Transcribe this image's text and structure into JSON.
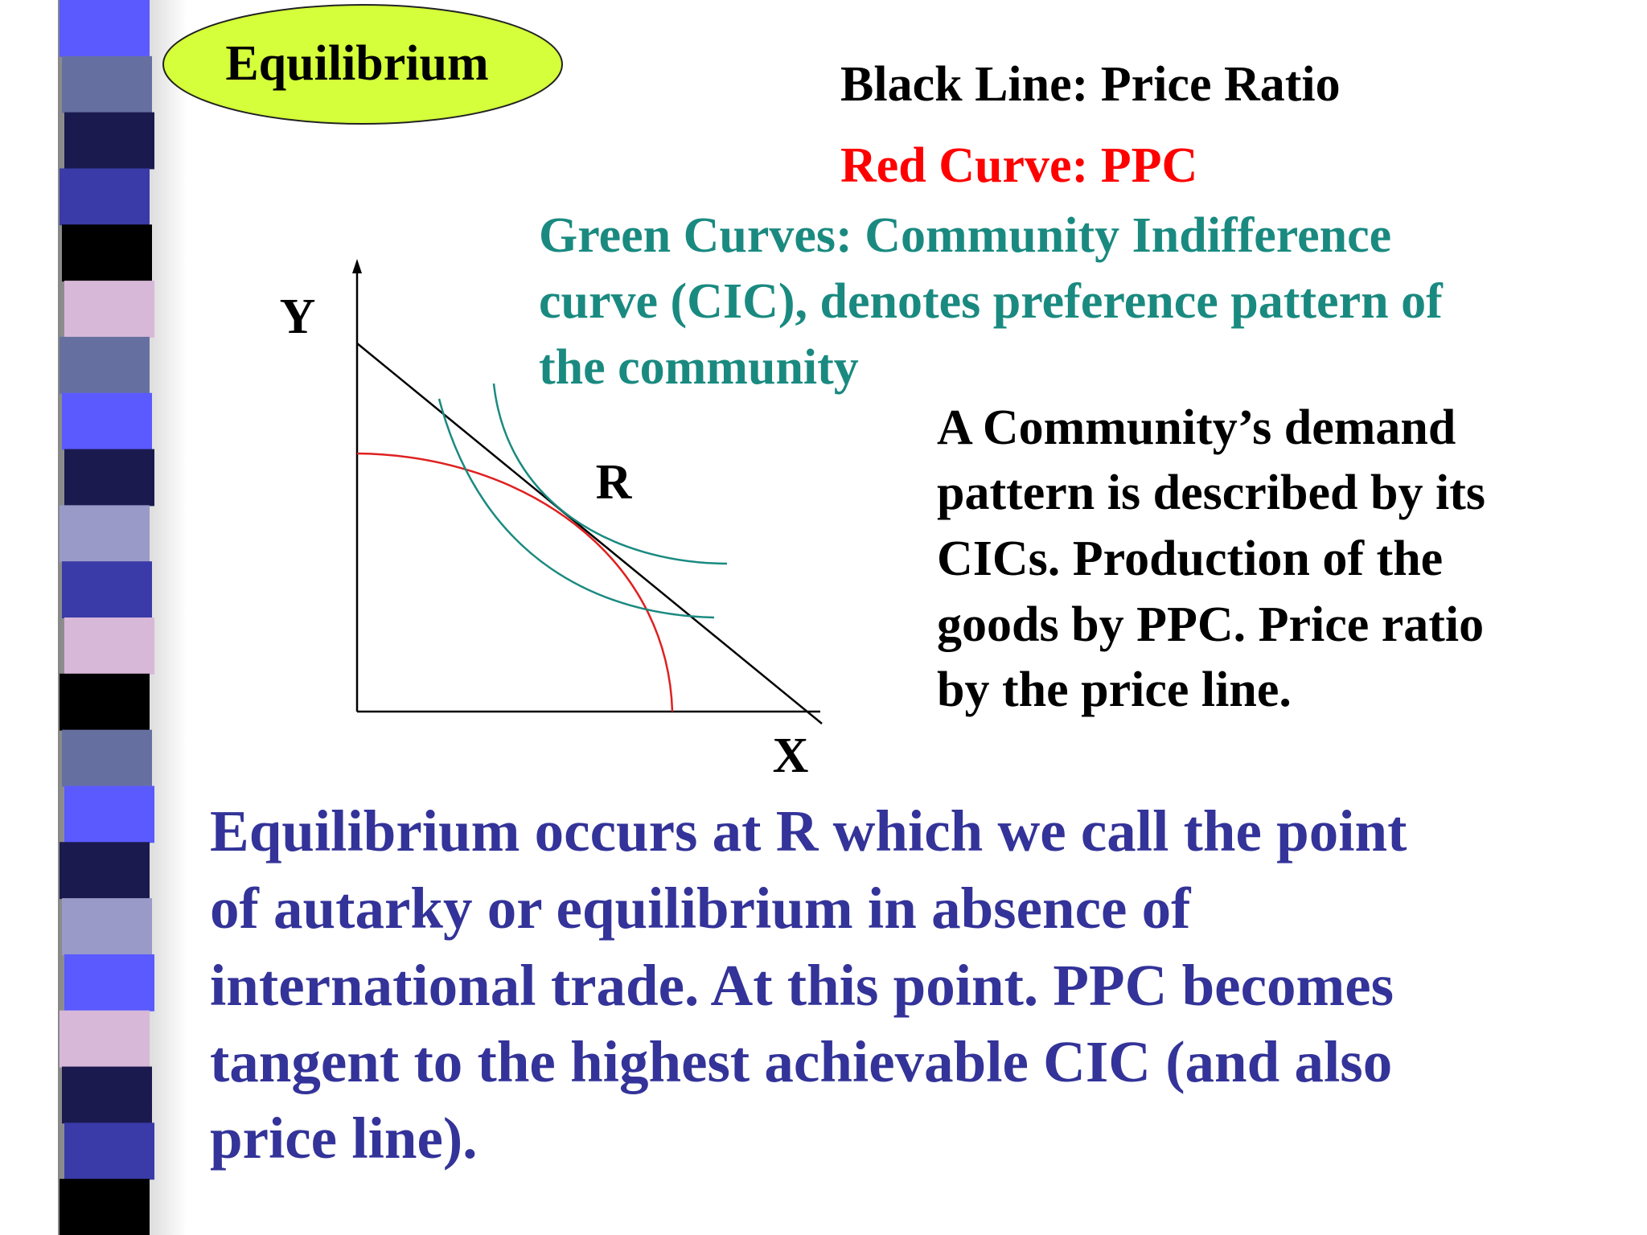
{
  "title": "Equilibrium",
  "legend": {
    "black": "Black Line: Price Ratio",
    "red": "Red Curve: PPC",
    "green": [
      "Green Curves: Community Indifference",
      "curve (CIC), denotes preference pattern of",
      "the community"
    ]
  },
  "diagram": {
    "y_label": "Y",
    "x_label": "X",
    "point_label": "R"
  },
  "side_text": [
    "A Community’s demand",
    "pattern is described by its",
    "CICs. Production of the",
    "goods by PPC. Price ratio",
    "by the price line."
  ],
  "conclusion": [
    "Equilibrium occurs at R which we call the point",
    "of autarky or equilibrium in absence of",
    "international trade. At this point. PPC becomes",
    "tangent to the highest achievable CIC (and also",
    "price line)."
  ]
}
